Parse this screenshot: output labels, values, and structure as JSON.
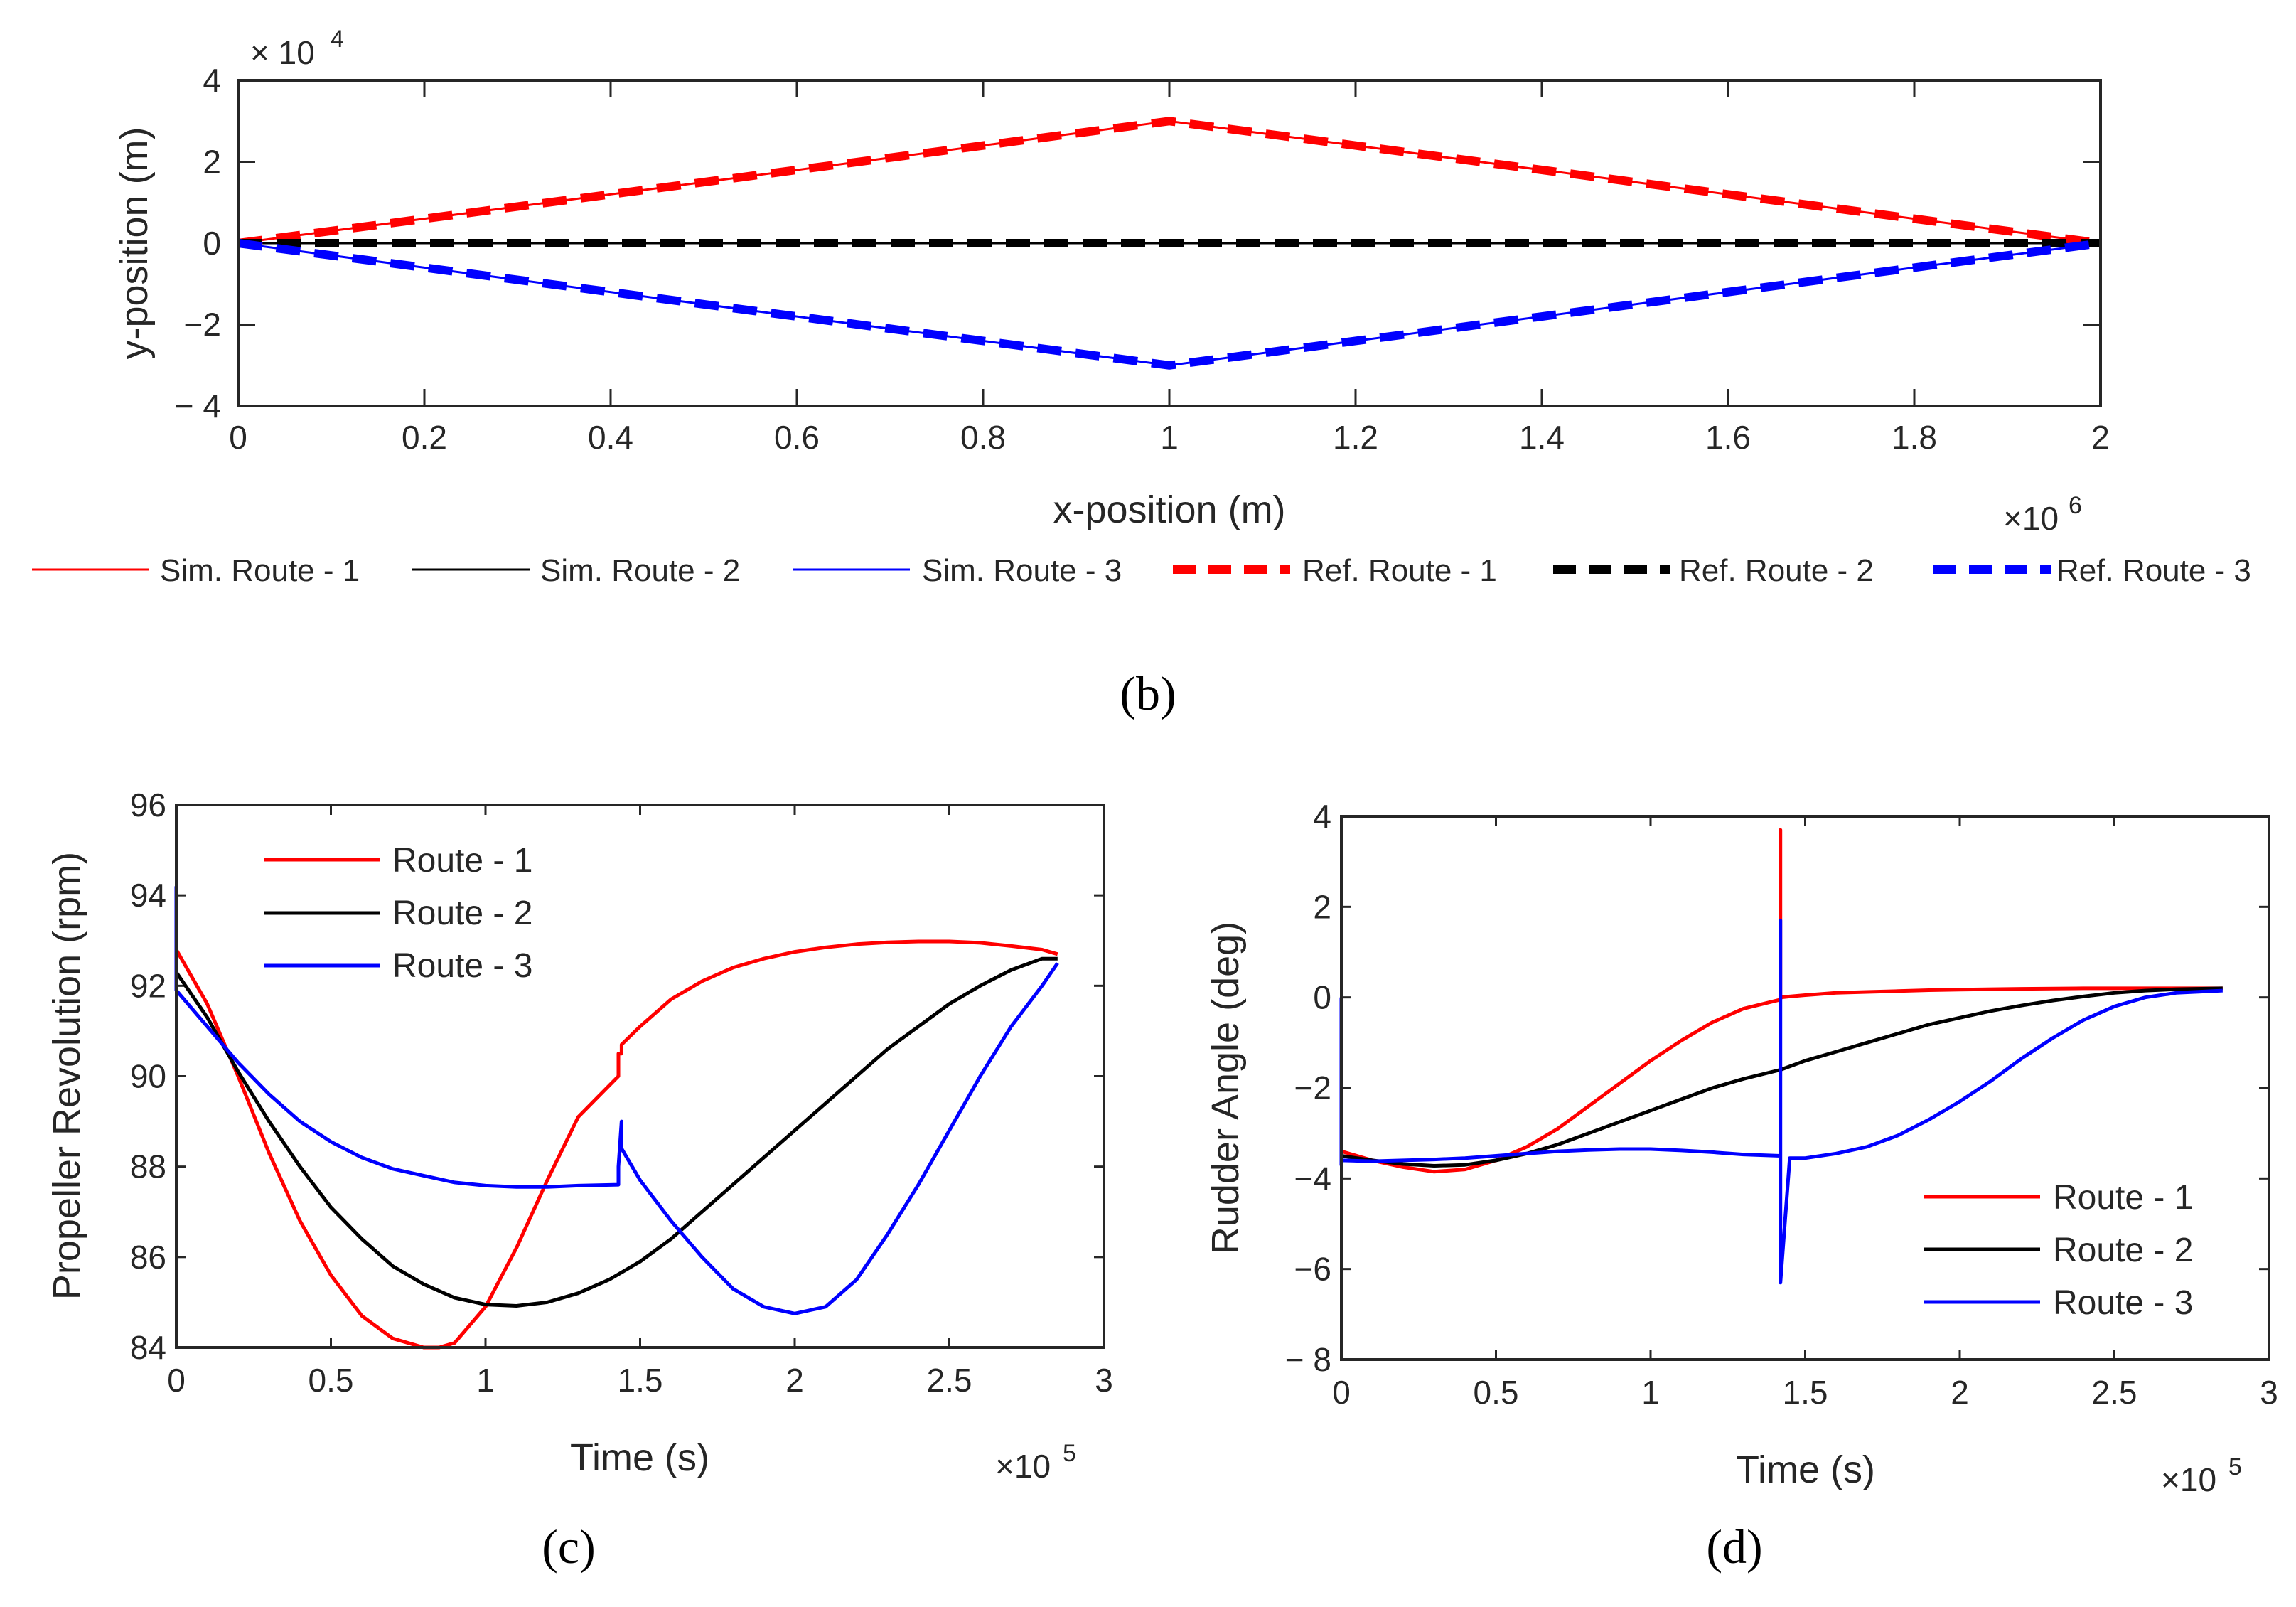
{
  "colors": {
    "route1": "#ff0000",
    "route2": "#000000",
    "route3": "#0000ff",
    "axis": "#262626"
  },
  "chart_data": [
    {
      "panel_label": "(b)",
      "type": "line",
      "xlabel": "x-position (m)",
      "ylabel": "y-position (m)",
      "x_exponent": "×10",
      "x_exponent_power": "6",
      "y_exponent": "× 10",
      "y_exponent_power": "4",
      "xlim": [
        0,
        2
      ],
      "ylim": [
        -4,
        4
      ],
      "xticks": [
        "0",
        "0.2",
        "0.4",
        "0.6",
        "0.8",
        "1",
        "1.2",
        "1.4",
        "1.6",
        "1.8",
        "2"
      ],
      "yticks": [
        "− 4",
        "−2",
        "0",
        "2",
        "4"
      ],
      "series": [
        {
          "name": "Sim. Route - 1",
          "color": "#ff0000",
          "style": "solid",
          "x": [
            0,
            1,
            2
          ],
          "y": [
            0,
            3,
            0
          ]
        },
        {
          "name": "Sim. Route - 2",
          "color": "#000000",
          "style": "solid",
          "x": [
            0,
            2
          ],
          "y": [
            0,
            0
          ]
        },
        {
          "name": "Sim. Route - 3",
          "color": "#0000ff",
          "style": "solid",
          "x": [
            0,
            1,
            2
          ],
          "y": [
            0,
            -3,
            0
          ]
        },
        {
          "name": "Ref. Route - 1",
          "color": "#ff0000",
          "style": "dashed",
          "x": [
            0,
            1,
            2
          ],
          "y": [
            0,
            3,
            0
          ]
        },
        {
          "name": "Ref. Route - 2",
          "color": "#000000",
          "style": "dashed",
          "x": [
            0,
            2
          ],
          "y": [
            0,
            0
          ]
        },
        {
          "name": "Ref. Route - 3",
          "color": "#0000ff",
          "style": "dashed",
          "x": [
            0,
            1,
            2
          ],
          "y": [
            0,
            -3,
            0
          ]
        }
      ]
    },
    {
      "panel_label": "(c)",
      "type": "line",
      "xlabel": "Time (s)",
      "ylabel": "Propeller Revolution (rpm)",
      "x_exponent": "×10",
      "x_exponent_power": "5",
      "xlim": [
        0,
        3
      ],
      "ylim": [
        84,
        96
      ],
      "xticks": [
        "0",
        "0.5",
        "1",
        "1.5",
        "2",
        "2.5",
        "3"
      ],
      "yticks": [
        "84",
        "86",
        "88",
        "90",
        "92",
        "94",
        "96"
      ],
      "legend": "top-left",
      "series": [
        {
          "name": "Route - 1",
          "color": "#ff0000",
          "x": [
            0,
            0.1,
            0.2,
            0.3,
            0.4,
            0.5,
            0.6,
            0.7,
            0.8,
            0.85,
            0.9,
            1.0,
            1.1,
            1.2,
            1.3,
            1.43,
            1.43,
            1.44,
            1.44,
            1.5,
            1.6,
            1.7,
            1.8,
            1.9,
            2.0,
            2.1,
            2.2,
            2.3,
            2.4,
            2.5,
            2.6,
            2.7,
            2.8,
            2.85
          ],
          "y": [
            92.8,
            91.6,
            90.0,
            88.3,
            86.8,
            85.6,
            84.7,
            84.2,
            84.0,
            84.0,
            84.1,
            84.9,
            86.2,
            87.7,
            89.1,
            90.0,
            90.5,
            90.5,
            90.7,
            91.1,
            91.7,
            92.1,
            92.4,
            92.6,
            92.75,
            92.85,
            92.92,
            92.96,
            92.98,
            92.98,
            92.95,
            92.88,
            92.8,
            92.7
          ]
        },
        {
          "name": "Route - 2",
          "color": "#000000",
          "x": [
            0,
            0.1,
            0.2,
            0.3,
            0.4,
            0.5,
            0.6,
            0.7,
            0.8,
            0.9,
            1.0,
            1.1,
            1.2,
            1.3,
            1.4,
            1.5,
            1.6,
            1.7,
            1.8,
            1.9,
            2.0,
            2.1,
            2.2,
            2.3,
            2.4,
            2.5,
            2.6,
            2.7,
            2.8,
            2.85
          ],
          "y": [
            92.3,
            91.3,
            90.1,
            89.0,
            88.0,
            87.1,
            86.4,
            85.8,
            85.4,
            85.1,
            84.95,
            84.92,
            85.0,
            85.2,
            85.5,
            85.9,
            86.4,
            87.0,
            87.6,
            88.2,
            88.8,
            89.4,
            90.0,
            90.6,
            91.1,
            91.6,
            92.0,
            92.35,
            92.6,
            92.6
          ]
        },
        {
          "name": "Route - 3",
          "color": "#0000ff",
          "x": [
            0,
            0,
            0,
            0.1,
            0.2,
            0.3,
            0.4,
            0.5,
            0.6,
            0.7,
            0.8,
            0.9,
            1.0,
            1.1,
            1.2,
            1.3,
            1.43,
            1.43,
            1.44,
            1.44,
            1.5,
            1.6,
            1.7,
            1.8,
            1.9,
            2.0,
            2.1,
            2.2,
            2.3,
            2.4,
            2.5,
            2.6,
            2.7,
            2.8,
            2.85
          ],
          "y": [
            94.2,
            92.0,
            91.9,
            91.1,
            90.3,
            89.6,
            89.0,
            88.55,
            88.2,
            87.95,
            87.8,
            87.65,
            87.58,
            87.55,
            87.55,
            87.58,
            87.6,
            88.0,
            89.0,
            88.4,
            87.7,
            86.8,
            86.0,
            85.3,
            84.9,
            84.75,
            84.9,
            85.5,
            86.5,
            87.6,
            88.8,
            90.0,
            91.1,
            92.0,
            92.5
          ]
        }
      ]
    },
    {
      "panel_label": "(d)",
      "type": "line",
      "xlabel": "Time (s)",
      "ylabel": "Rudder Angle (deg)",
      "x_exponent": "×10",
      "x_exponent_power": "5",
      "xlim": [
        0,
        3
      ],
      "ylim": [
        -8,
        4
      ],
      "xticks": [
        "0",
        "0.5",
        "1",
        "1.5",
        "2",
        "2.5",
        "3"
      ],
      "yticks": [
        "− 8",
        "−6",
        "−4",
        "−2",
        "0",
        "2",
        "4"
      ],
      "legend": "bottom-right",
      "series": [
        {
          "name": "Route - 1",
          "color": "#ff0000",
          "x": [
            0,
            0.05,
            0.1,
            0.2,
            0.3,
            0.4,
            0.5,
            0.6,
            0.7,
            0.8,
            0.9,
            1.0,
            1.1,
            1.2,
            1.3,
            1.42,
            1.42,
            1.42,
            1.45,
            1.5,
            1.6,
            1.7,
            1.8,
            1.9,
            2.0,
            2.2,
            2.4,
            2.6,
            2.85
          ],
          "y": [
            -3.4,
            -3.5,
            -3.6,
            -3.75,
            -3.85,
            -3.8,
            -3.6,
            -3.3,
            -2.9,
            -2.4,
            -1.9,
            -1.4,
            -0.95,
            -0.55,
            -0.25,
            -0.05,
            3.7,
            0.0,
            0.02,
            0.05,
            0.1,
            0.12,
            0.14,
            0.16,
            0.17,
            0.19,
            0.2,
            0.2,
            0.2
          ]
        },
        {
          "name": "Route - 2",
          "color": "#000000",
          "x": [
            0,
            0.1,
            0.2,
            0.3,
            0.4,
            0.5,
            0.6,
            0.7,
            0.8,
            0.9,
            1.0,
            1.1,
            1.2,
            1.3,
            1.42,
            1.5,
            1.6,
            1.7,
            1.8,
            1.9,
            2.0,
            2.1,
            2.2,
            2.3,
            2.4,
            2.5,
            2.6,
            2.7,
            2.85
          ],
          "y": [
            -3.5,
            -3.6,
            -3.68,
            -3.72,
            -3.7,
            -3.6,
            -3.45,
            -3.25,
            -3.0,
            -2.75,
            -2.5,
            -2.25,
            -2.0,
            -1.8,
            -1.6,
            -1.4,
            -1.2,
            -1.0,
            -0.8,
            -0.6,
            -0.45,
            -0.3,
            -0.18,
            -0.07,
            0.02,
            0.1,
            0.15,
            0.18,
            0.2
          ]
        },
        {
          "name": "Route - 3",
          "color": "#0000ff",
          "x": [
            0,
            0,
            0,
            0.1,
            0.2,
            0.3,
            0.4,
            0.5,
            0.6,
            0.7,
            0.8,
            0.9,
            1.0,
            1.1,
            1.2,
            1.3,
            1.42,
            1.42,
            1.42,
            1.45,
            1.5,
            1.6,
            1.7,
            1.8,
            1.9,
            2.0,
            2.1,
            2.2,
            2.3,
            2.4,
            2.5,
            2.6,
            2.7,
            2.85
          ],
          "y": [
            0.0,
            -3.7,
            -3.6,
            -3.62,
            -3.6,
            -3.58,
            -3.55,
            -3.5,
            -3.45,
            -3.4,
            -3.37,
            -3.35,
            -3.35,
            -3.38,
            -3.42,
            -3.47,
            -3.5,
            1.7,
            -6.3,
            -3.55,
            -3.55,
            -3.45,
            -3.3,
            -3.05,
            -2.7,
            -2.3,
            -1.85,
            -1.35,
            -0.9,
            -0.5,
            -0.2,
            0.0,
            0.1,
            0.15
          ]
        }
      ]
    }
  ]
}
